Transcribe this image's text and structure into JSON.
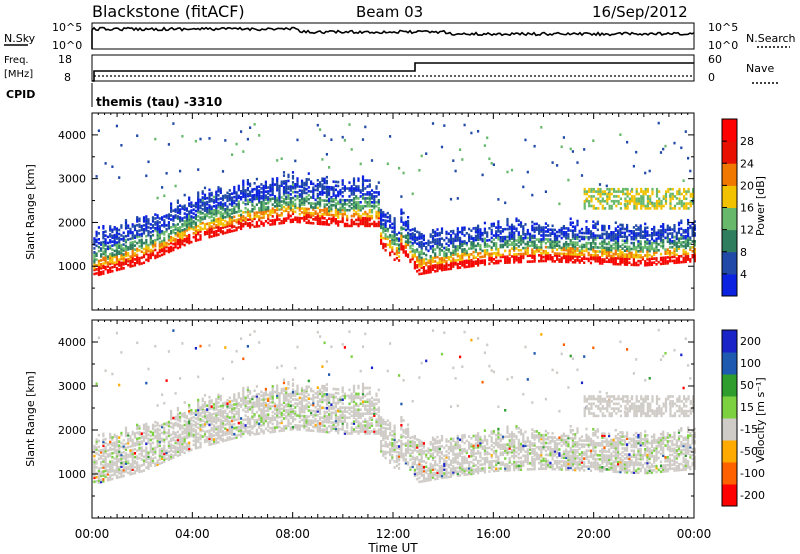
{
  "header": {
    "station": "Blackstone (fitACF)",
    "beam": "Beam 03",
    "date": "16/Sep/2012"
  },
  "noise_panel": {
    "left_label": "N.Sky",
    "right_label": "N.Search",
    "left_ticks": [
      "10^5",
      "10^0"
    ],
    "right_ticks": [
      "10^5",
      "10^0"
    ]
  },
  "freq_panel": {
    "left_label_1": "Freq.",
    "left_label_2": "[MHz]",
    "right_label": "Nave",
    "left_ticks": [
      "18",
      "8"
    ],
    "right_ticks": [
      "60",
      "0"
    ],
    "cpid_label": "CPID",
    "cpid_text": "themis (tau) -3310"
  },
  "colors": {
    "power": [
      "#0b22e0",
      "#2149a8",
      "#2e7d5e",
      "#67b86b",
      "#f2c200",
      "#f07800",
      "#e81000",
      "#ff0000"
    ],
    "velocity": [
      "#ff0000",
      "#ff6000",
      "#ffaa00",
      "#cfcbc6",
      "#7cd141",
      "#2f9c2e",
      "#1e5ab0",
      "#1a23c8"
    ]
  },
  "chart_data": [
    {
      "type": "heatmap",
      "panel": "power",
      "ylabel": "Slant Range [km]",
      "xlabel": "",
      "ylim": [
        0,
        4500
      ],
      "yticks": [
        "1000",
        "2000",
        "3000",
        "4000"
      ],
      "colorbar_label": "Power [dB]",
      "colorbar_ticks": [
        "4",
        "8",
        "12",
        "16",
        "20",
        "24",
        "28"
      ],
      "clim": [
        0,
        32
      ],
      "features": [
        {
          "x": [
            0.0,
            2.0,
            4.0,
            6.0,
            8.0,
            10.0
          ],
          "y": [
            950,
            1250,
            1750,
            2050,
            2200,
            2100
          ]
        },
        {
          "x": [
            12.0,
            13.0,
            14.0,
            16.0,
            18.0,
            20.0,
            22.0,
            24.0
          ],
          "y": [
            1800,
            1000,
            1100,
            1250,
            1300,
            1250,
            1200,
            1300
          ]
        }
      ]
    },
    {
      "type": "heatmap",
      "panel": "velocity",
      "ylabel": "Slant Range [km]",
      "xlabel": "Time UT",
      "ylim": [
        0,
        4500
      ],
      "yticks": [
        "1000",
        "2000",
        "3000",
        "4000"
      ],
      "xticks": [
        "00:00",
        "04:00",
        "08:00",
        "12:00",
        "16:00",
        "20:00",
        "00:00"
      ],
      "xlim": [
        0,
        24
      ],
      "colorbar_label": "Velocity [m s⁻¹]",
      "colorbar_ticks": [
        "200",
        "100",
        "50",
        "15",
        "-15",
        "-50",
        "-100",
        "-200"
      ]
    }
  ]
}
